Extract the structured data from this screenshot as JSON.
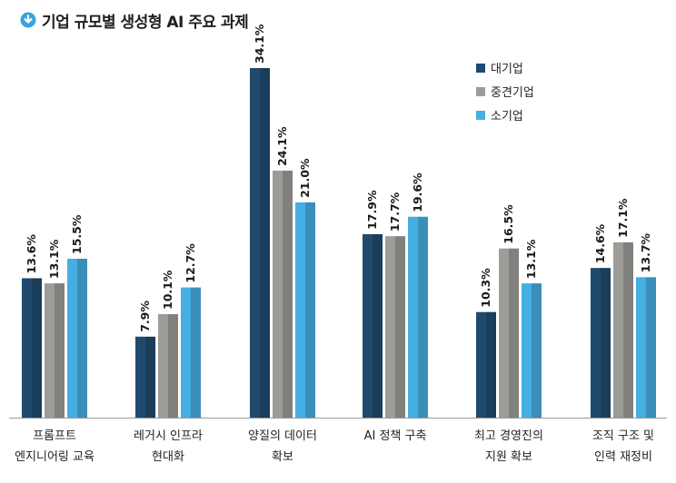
{
  "title": "기업 규모별 생성형 AI 주요 과제",
  "icon": "download-circle-icon",
  "colors": {
    "title_icon": "#3aa3dc",
    "baseline": "#9a9a9a"
  },
  "chart_data": {
    "type": "bar",
    "title": "기업 규모별 생성형 AI 주요 과제",
    "categories": [
      [
        "프롬프트",
        "엔지니어링 교육"
      ],
      [
        "레거시 인프라",
        "현대화"
      ],
      [
        "양질의 데이터",
        "확보"
      ],
      [
        "AI 정책 구축"
      ],
      [
        "최고 경영진의",
        "지원 확보"
      ],
      [
        "조직 구조 및",
        "인력 재정비"
      ]
    ],
    "series": [
      {
        "name": "대기업",
        "color": "#1f4a6e",
        "values": [
          13.6,
          7.9,
          34.1,
          17.9,
          10.3,
          14.6
        ],
        "labels": [
          "13.6%",
          "7.9%",
          "34.1%",
          "17.9%",
          "10.3%",
          "14.6%"
        ]
      },
      {
        "name": "중견기업",
        "color": "#9c9d97",
        "values": [
          13.1,
          10.1,
          24.1,
          17.7,
          16.5,
          17.1
        ],
        "labels": [
          "13.1%",
          "10.1%",
          "24.1%",
          "17.7%",
          "16.5%",
          "17.1%"
        ]
      },
      {
        "name": "소기업",
        "color": "#45aee3",
        "values": [
          15.5,
          12.7,
          21.0,
          19.6,
          13.1,
          13.7
        ],
        "labels": [
          "15.5%",
          "12.7%",
          "21.0%",
          "19.6%",
          "13.1%",
          "13.7%"
        ]
      }
    ],
    "ylim": [
      0,
      34.1
    ],
    "value_unit": "%",
    "grid": false,
    "legend": "top-right",
    "xlabel": "",
    "ylabel": ""
  }
}
